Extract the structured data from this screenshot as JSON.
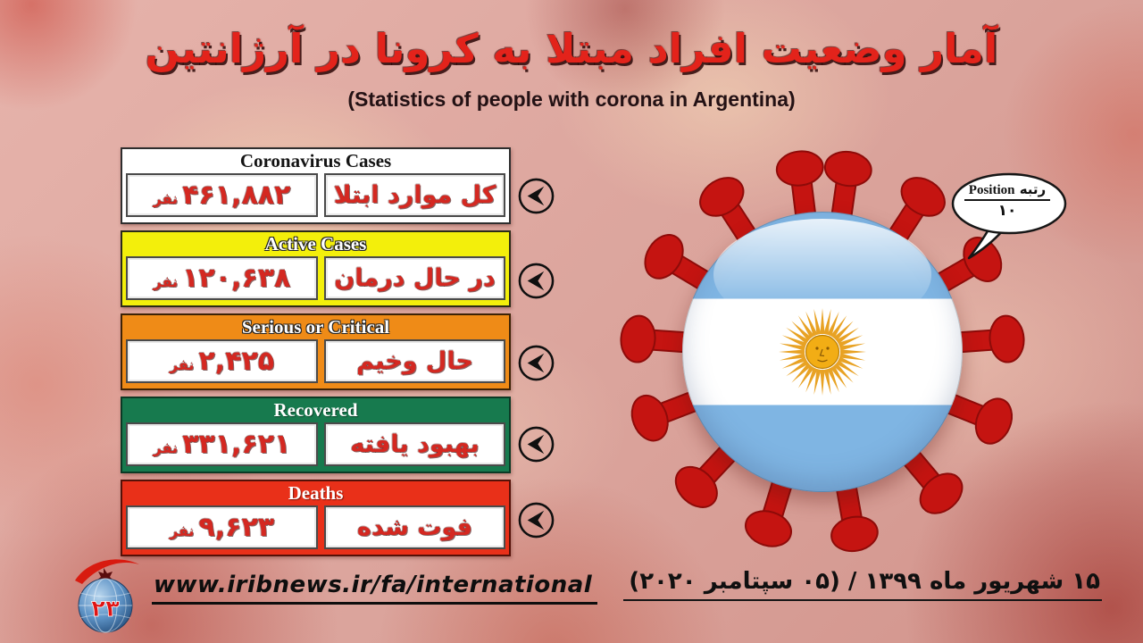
{
  "page": {
    "title_fa": "آمار وضعیت افراد مبتلا به کرونا در آرژانتین",
    "title_en": "(Statistics of people with corona in Argentina)"
  },
  "stats": [
    {
      "header": "Coronavirus Cases",
      "label": "کل موارد ابتلا",
      "value": "۴۶۱,۸۸۲",
      "unit": "نفر",
      "header_bg": "#ffffff",
      "header_color": "#141414",
      "border": "#2e2e2e"
    },
    {
      "header": "Active Cases",
      "label": "در حال درمان",
      "value": "۱۲۰,۶۳۸",
      "unit": "نفر",
      "header_bg": "#f3ef0b",
      "header_color": "#ffffff",
      "border": "#2b2b18"
    },
    {
      "header": "Serious or Critical",
      "label": "حال وخیم",
      "value": "۲,۴۲۵",
      "unit": "نفر",
      "header_bg": "#ef8b17",
      "header_color": "#ffffff",
      "border": "#3d2306"
    },
    {
      "header": "Recovered",
      "label": "بهبود یافته",
      "value": "۳۳۱,۶۲۱",
      "unit": "نفر",
      "header_bg": "#177a4e",
      "header_color": "#ffffff",
      "border": "#0b3a25"
    },
    {
      "header": "Deaths",
      "label": "فوت شده",
      "value": "۹,۶۲۳",
      "unit": "نفر",
      "header_bg": "#e93019",
      "header_color": "#ffffff",
      "border": "#551108"
    }
  ],
  "rank_bubble": {
    "label_fa": "رتبه",
    "label_en": "Position",
    "value": "۱۰"
  },
  "flag": {
    "country": "Argentina"
  },
  "footer": {
    "url": "www.iribnews.ir/fa/international",
    "logo_number": "۲۳",
    "date": "۱۵ شهریور ماه ۱۳۹۹ / (۰۵ سپتامبر ۲۰۲۰)"
  },
  "colors": {
    "accent_red_text": "#d42821",
    "virus_red": "#c51411",
    "flag_blue": "#7fb5e3",
    "sun_gold": "#eca70e",
    "background_pink": "#dda49c"
  },
  "chart_data": {
    "type": "table",
    "title": "آمار وضعیت افراد مبتلا به کرونا در آرژانتین (Statistics of people with corona in Argentina)",
    "categories": [
      "Coronavirus Cases",
      "Active Cases",
      "Serious or Critical",
      "Recovered",
      "Deaths"
    ],
    "values": [
      461882,
      120638,
      2425,
      331621,
      9623
    ],
    "labels_fa": [
      "کل موارد ابتلا",
      "در حال درمان",
      "حال وخیم",
      "بهبود یافته",
      "فوت شده"
    ],
    "unit": "نفر (persons)",
    "country": "Argentina",
    "country_rank": 10,
    "date_fa": "۱۵ شهریور ماه ۱۳۹۹",
    "date_en": "05 September 2020",
    "source": "www.iribnews.ir/fa/international"
  }
}
